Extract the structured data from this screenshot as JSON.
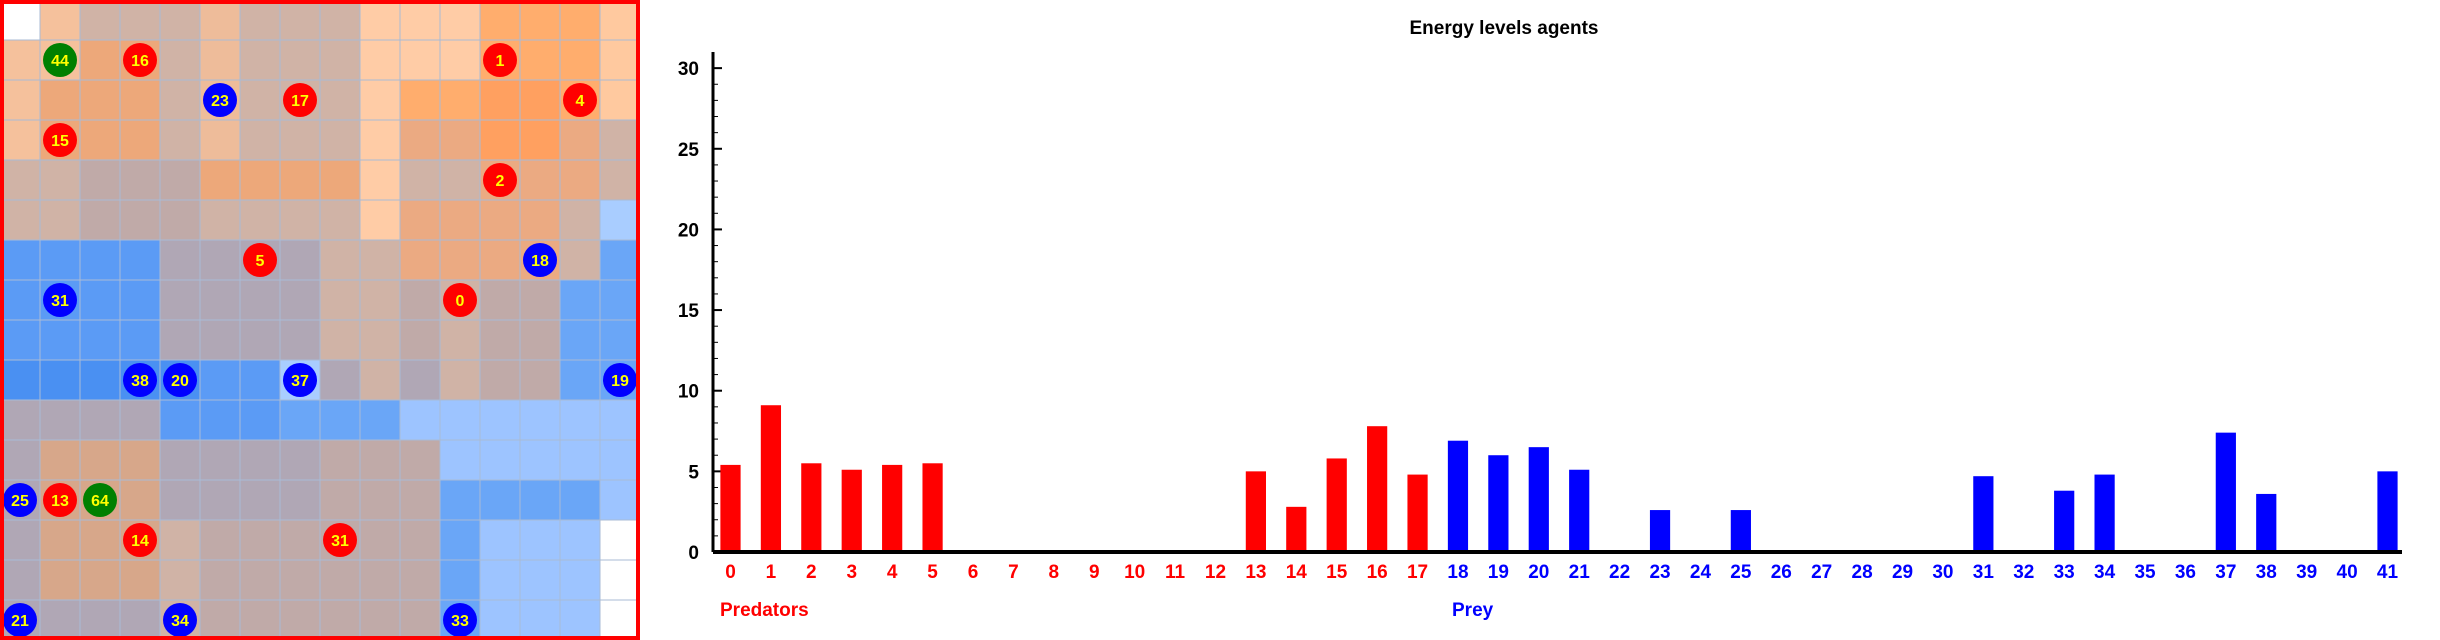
{
  "grid": {
    "cols": 16,
    "rows": 16,
    "cell_colors": [
      [
        "#ffffff",
        "#f5c19c",
        "#d0b3a6",
        "#d0b3a6",
        "#d0b3a6",
        "#eebc9a",
        "#d0b3a6",
        "#d0b3a6",
        "#d0b3a6",
        "#ffcca6",
        "#ffcca6",
        "#ffcca6",
        "#ffad6d",
        "#ffad6d",
        "#ffad6d",
        "#ffc99f"
      ],
      [
        "#f5c19c",
        "#f5c19c",
        "#eda87a",
        "#eda87a",
        "#d0b3a6",
        "#eebc9a",
        "#d0b3a6",
        "#d0b3a6",
        "#d0b3a6",
        "#ffcca6",
        "#ffcca6",
        "#ffcca6",
        "#ffad6d",
        "#ffad6d",
        "#ffad6d",
        "#ffc99f"
      ],
      [
        "#f5c19c",
        "#eda87a",
        "#eda87a",
        "#eda87a",
        "#d0b3a6",
        "#eebc9a",
        "#d0b3a6",
        "#d0b3a6",
        "#d0b3a6",
        "#ffcca6",
        "#ffad6d",
        "#ffad6d",
        "#ffa060",
        "#ffa060",
        "#ffad6d",
        "#ffc99f"
      ],
      [
        "#f5c19c",
        "#eda87a",
        "#eda87a",
        "#eda87a",
        "#d0b3a6",
        "#eebc9a",
        "#d0b3a6",
        "#d0b3a6",
        "#d0b3a6",
        "#ffcca6",
        "#ebaa82",
        "#ebaa82",
        "#ffa060",
        "#ffa060",
        "#ebaa82",
        "#d0b3a6"
      ],
      [
        "#d0b3a6",
        "#d0b3a6",
        "#c0aaa8",
        "#c0aaa8",
        "#c0aaa8",
        "#eda87a",
        "#eda87a",
        "#eda87a",
        "#eda87a",
        "#ffcca6",
        "#d0b3a6",
        "#d0b3a6",
        "#ebaa82",
        "#ebaa82",
        "#ebaa82",
        "#d0b3a6"
      ],
      [
        "#d0b3a6",
        "#d0b3a6",
        "#c0aaa8",
        "#c0aaa8",
        "#c0aaa8",
        "#d0b3a6",
        "#d0b3a6",
        "#d0b3a6",
        "#d0b3a6",
        "#ffcca6",
        "#ebaa82",
        "#ebaa82",
        "#ebaa82",
        "#ebaa82",
        "#d0b3a6",
        "#a9cdff"
      ],
      [
        "#5b9bf5",
        "#5b9bf5",
        "#5b9bf5",
        "#5b9bf5",
        "#b0a7b5",
        "#b0a7b5",
        "#b0a7b5",
        "#b0a7b5",
        "#d0b3a6",
        "#d0b3a6",
        "#ebaa82",
        "#ebaa82",
        "#ebaa82",
        "#ebaa82",
        "#d0b3a6",
        "#6aa6f7"
      ],
      [
        "#5b9bf5",
        "#5b9bf5",
        "#5b9bf5",
        "#5b9bf5",
        "#b0a7b5",
        "#b0a7b5",
        "#b0a7b5",
        "#b0a7b5",
        "#d0b3a6",
        "#d0b3a6",
        "#c0aaa8",
        "#d0b3a6",
        "#c0aaa8",
        "#c0aaa8",
        "#6aa6f7",
        "#6aa6f7"
      ],
      [
        "#5b9bf5",
        "#5b9bf5",
        "#5b9bf5",
        "#5b9bf5",
        "#b0a7b5",
        "#b0a7b5",
        "#b0a7b5",
        "#b0a7b5",
        "#d0b3a6",
        "#d0b3a6",
        "#c0aaa8",
        "#d0b3a6",
        "#c0aaa8",
        "#c0aaa8",
        "#6aa6f7",
        "#6aa6f7"
      ],
      [
        "#4a90f2",
        "#4a90f2",
        "#4a90f2",
        "#4a90f2",
        "#4a90f2",
        "#5b9bf5",
        "#5b9bf5",
        "#a9cdff",
        "#b0a7b5",
        "#d0b3a6",
        "#b0a7b5",
        "#d0b3a6",
        "#c0aaa8",
        "#c0aaa8",
        "#6aa6f7",
        "#6aa6f7"
      ],
      [
        "#b0a7b5",
        "#b0a7b5",
        "#b0a7b5",
        "#b0a7b5",
        "#5b9bf5",
        "#5b9bf5",
        "#5b9bf5",
        "#6aa6f7",
        "#6aa6f7",
        "#6aa6f7",
        "#9dc4ff",
        "#9dc4ff",
        "#9dc4ff",
        "#9dc4ff",
        "#9dc4ff",
        "#9dc4ff"
      ],
      [
        "#b0a7b5",
        "#d7a78a",
        "#d7a78a",
        "#d7a78a",
        "#b0a7b5",
        "#b0a7b5",
        "#b0a7b5",
        "#b0a7b5",
        "#c0aaa8",
        "#c0aaa8",
        "#c0aaa8",
        "#9dc4ff",
        "#9dc4ff",
        "#9dc4ff",
        "#9dc4ff",
        "#9dc4ff"
      ],
      [
        "#b0a7b5",
        "#d7a78a",
        "#d7a78a",
        "#d7a78a",
        "#b0a7b5",
        "#b0a7b5",
        "#b0a7b5",
        "#b0a7b5",
        "#c0aaa8",
        "#c0aaa8",
        "#c0aaa8",
        "#6aa6f7",
        "#6aa6f7",
        "#6aa6f7",
        "#6aa6f7",
        "#9dc4ff"
      ],
      [
        "#b0a7b5",
        "#d7a78a",
        "#d7a78a",
        "#d7a78a",
        "#d0b3a6",
        "#c0aaa8",
        "#c0aaa8",
        "#c0aaa8",
        "#c0aaa8",
        "#c0aaa8",
        "#c0aaa8",
        "#6aa6f7",
        "#9dc4ff",
        "#9dc4ff",
        "#9dc4ff",
        "#ffffff"
      ],
      [
        "#b0a7b5",
        "#d7a78a",
        "#d7a78a",
        "#d7a78a",
        "#d0b3a6",
        "#c0aaa8",
        "#c0aaa8",
        "#c0aaa8",
        "#c0aaa8",
        "#c0aaa8",
        "#c0aaa8",
        "#6aa6f7",
        "#9dc4ff",
        "#9dc4ff",
        "#9dc4ff",
        "#ffffff"
      ],
      [
        "#b0a7b5",
        "#b0a7b5",
        "#b0a7b5",
        "#b0a7b5",
        "#d0b3a6",
        "#c0aaa8",
        "#c0aaa8",
        "#c0aaa8",
        "#c0aaa8",
        "#c0aaa8",
        "#c0aaa8",
        "#6aa6f7",
        "#9dc4ff",
        "#9dc4ff",
        "#9dc4ff",
        "#ffffff"
      ]
    ],
    "agents": [
      {
        "id": "44",
        "kind": "green",
        "col": 1,
        "row": 1
      },
      {
        "id": "16",
        "kind": "predator",
        "col": 3,
        "row": 1
      },
      {
        "id": "1",
        "kind": "predator",
        "col": 12,
        "row": 1
      },
      {
        "id": "23",
        "kind": "prey",
        "col": 5,
        "row": 2
      },
      {
        "id": "17",
        "kind": "predator",
        "col": 7,
        "row": 2
      },
      {
        "id": "4",
        "kind": "predator",
        "col": 14,
        "row": 2
      },
      {
        "id": "15",
        "kind": "predator",
        "col": 1,
        "row": 3
      },
      {
        "id": "2",
        "kind": "predator",
        "col": 12,
        "row": 4
      },
      {
        "id": "5",
        "kind": "predator",
        "col": 6,
        "row": 6
      },
      {
        "id": "18",
        "kind": "prey",
        "col": 13,
        "row": 6
      },
      {
        "id": "31",
        "kind": "prey",
        "col": 1,
        "row": 7
      },
      {
        "id": "0",
        "kind": "predator",
        "col": 11,
        "row": 7
      },
      {
        "id": "38",
        "kind": "prey",
        "col": 3,
        "row": 9
      },
      {
        "id": "20",
        "kind": "prey",
        "col": 4,
        "row": 9
      },
      {
        "id": "37",
        "kind": "prey",
        "col": 7,
        "row": 9
      },
      {
        "id": "19",
        "kind": "prey",
        "col": 15,
        "row": 9
      },
      {
        "id": "25",
        "kind": "prey",
        "col": 0,
        "row": 12
      },
      {
        "id": "13",
        "kind": "predator",
        "col": 1,
        "row": 12
      },
      {
        "id": "64",
        "kind": "green",
        "col": 2,
        "row": 12
      },
      {
        "id": "14",
        "kind": "predator",
        "col": 3,
        "row": 13
      },
      {
        "id": "31",
        "kind": "predator",
        "col": 8,
        "row": 13
      },
      {
        "id": "21",
        "kind": "prey",
        "col": 0,
        "row": 15
      },
      {
        "id": "34",
        "kind": "prey",
        "col": 4,
        "row": 15
      },
      {
        "id": "33",
        "kind": "prey",
        "col": 11,
        "row": 15
      }
    ]
  },
  "colors": {
    "predator": "#ff0000",
    "prey": "#0000ff",
    "green": "#008000",
    "agent_label": "#ffff00",
    "axis": "#000000",
    "grid_line": "#a9bbd6",
    "grid_border": "#ff0000"
  },
  "chart_data": {
    "type": "bar",
    "title": "Energy levels agents",
    "xlabel": "",
    "ylabel": "",
    "ylim": [
      0,
      31
    ],
    "yticks": [
      0,
      5,
      10,
      15,
      20,
      25,
      30
    ],
    "grid": false,
    "categories": [
      "0",
      "1",
      "2",
      "3",
      "4",
      "5",
      "6",
      "7",
      "8",
      "9",
      "10",
      "11",
      "12",
      "13",
      "14",
      "15",
      "16",
      "17",
      "18",
      "19",
      "20",
      "21",
      "22",
      "23",
      "24",
      "25",
      "26",
      "27",
      "28",
      "29",
      "30",
      "31",
      "32",
      "33",
      "34",
      "35",
      "36",
      "37",
      "38",
      "39",
      "40",
      "41"
    ],
    "values": [
      5.4,
      9.1,
      5.5,
      5.1,
      5.4,
      5.5,
      0,
      0,
      0,
      0,
      0,
      0,
      0,
      5.0,
      2.8,
      5.8,
      7.8,
      4.8,
      6.9,
      6.0,
      6.5,
      5.1,
      0,
      2.6,
      0,
      2.6,
      0,
      0,
      0,
      0,
      0,
      4.7,
      0,
      3.8,
      4.8,
      0,
      0,
      7.4,
      3.6,
      0,
      0,
      5.0
    ],
    "bar_group": [
      "predator",
      "predator",
      "predator",
      "predator",
      "predator",
      "predator",
      "predator",
      "predator",
      "predator",
      "predator",
      "predator",
      "predator",
      "predator",
      "predator",
      "predator",
      "predator",
      "predator",
      "predator",
      "prey",
      "prey",
      "prey",
      "prey",
      "prey",
      "prey",
      "prey",
      "prey",
      "prey",
      "prey",
      "prey",
      "prey",
      "prey",
      "prey",
      "prey",
      "prey",
      "prey",
      "prey",
      "prey",
      "prey",
      "prey",
      "prey",
      "prey",
      "prey"
    ],
    "group_labels": {
      "predator": "Predators",
      "prey": "Prey"
    }
  }
}
